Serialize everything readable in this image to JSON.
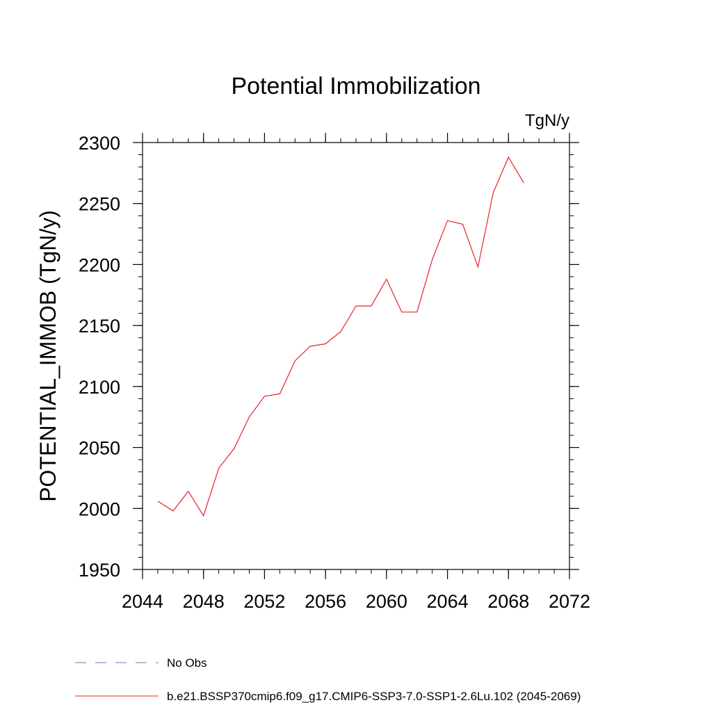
{
  "chart_data": {
    "type": "line",
    "title": "Potential Immobilization",
    "units_label": "TgN/y",
    "ylabel": "POTENTIAL_IMMOB  (TgN/y)",
    "xlabel": "",
    "xlim": [
      2044,
      2072
    ],
    "ylim": [
      1950,
      2300
    ],
    "x_ticks": [
      2044,
      2048,
      2052,
      2056,
      2060,
      2064,
      2068,
      2072
    ],
    "y_ticks": [
      1950,
      2000,
      2050,
      2100,
      2150,
      2200,
      2250,
      2300
    ],
    "x_minor_step": 1,
    "y_minor_step": 10,
    "grid": false,
    "legend_position": "bottom",
    "series": [
      {
        "name": "b.e21.BSSP370cmip6.f09_g17.CMIP6-SSP3-7.0-SSP1-2.6Lu.102 (2045-2069)",
        "color": "#e8202a",
        "style": "solid",
        "x": [
          2045,
          2046,
          2047,
          2048,
          2049,
          2050,
          2051,
          2052,
          2053,
          2054,
          2055,
          2056,
          2057,
          2058,
          2059,
          2060,
          2061,
          2062,
          2063,
          2064,
          2065,
          2066,
          2067,
          2068,
          2069
        ],
        "y": [
          2006,
          1998,
          2014,
          1994,
          2033,
          2049,
          2075,
          2092,
          2094,
          2121,
          2133,
          2135,
          2145,
          2166,
          2166,
          2188,
          2161,
          2161,
          2204,
          2236,
          2233,
          2198,
          2259,
          2288,
          2267
        ]
      }
    ],
    "legend": [
      {
        "label": "No Obs",
        "color": "#7b6fb5",
        "style": "dashed"
      },
      {
        "label": "b.e21.BSSP370cmip6.f09_g17.CMIP6-SSP3-7.0-SSP1-2.6Lu.102 (2045-2069)",
        "color": "#e8202a",
        "style": "solid"
      }
    ]
  }
}
